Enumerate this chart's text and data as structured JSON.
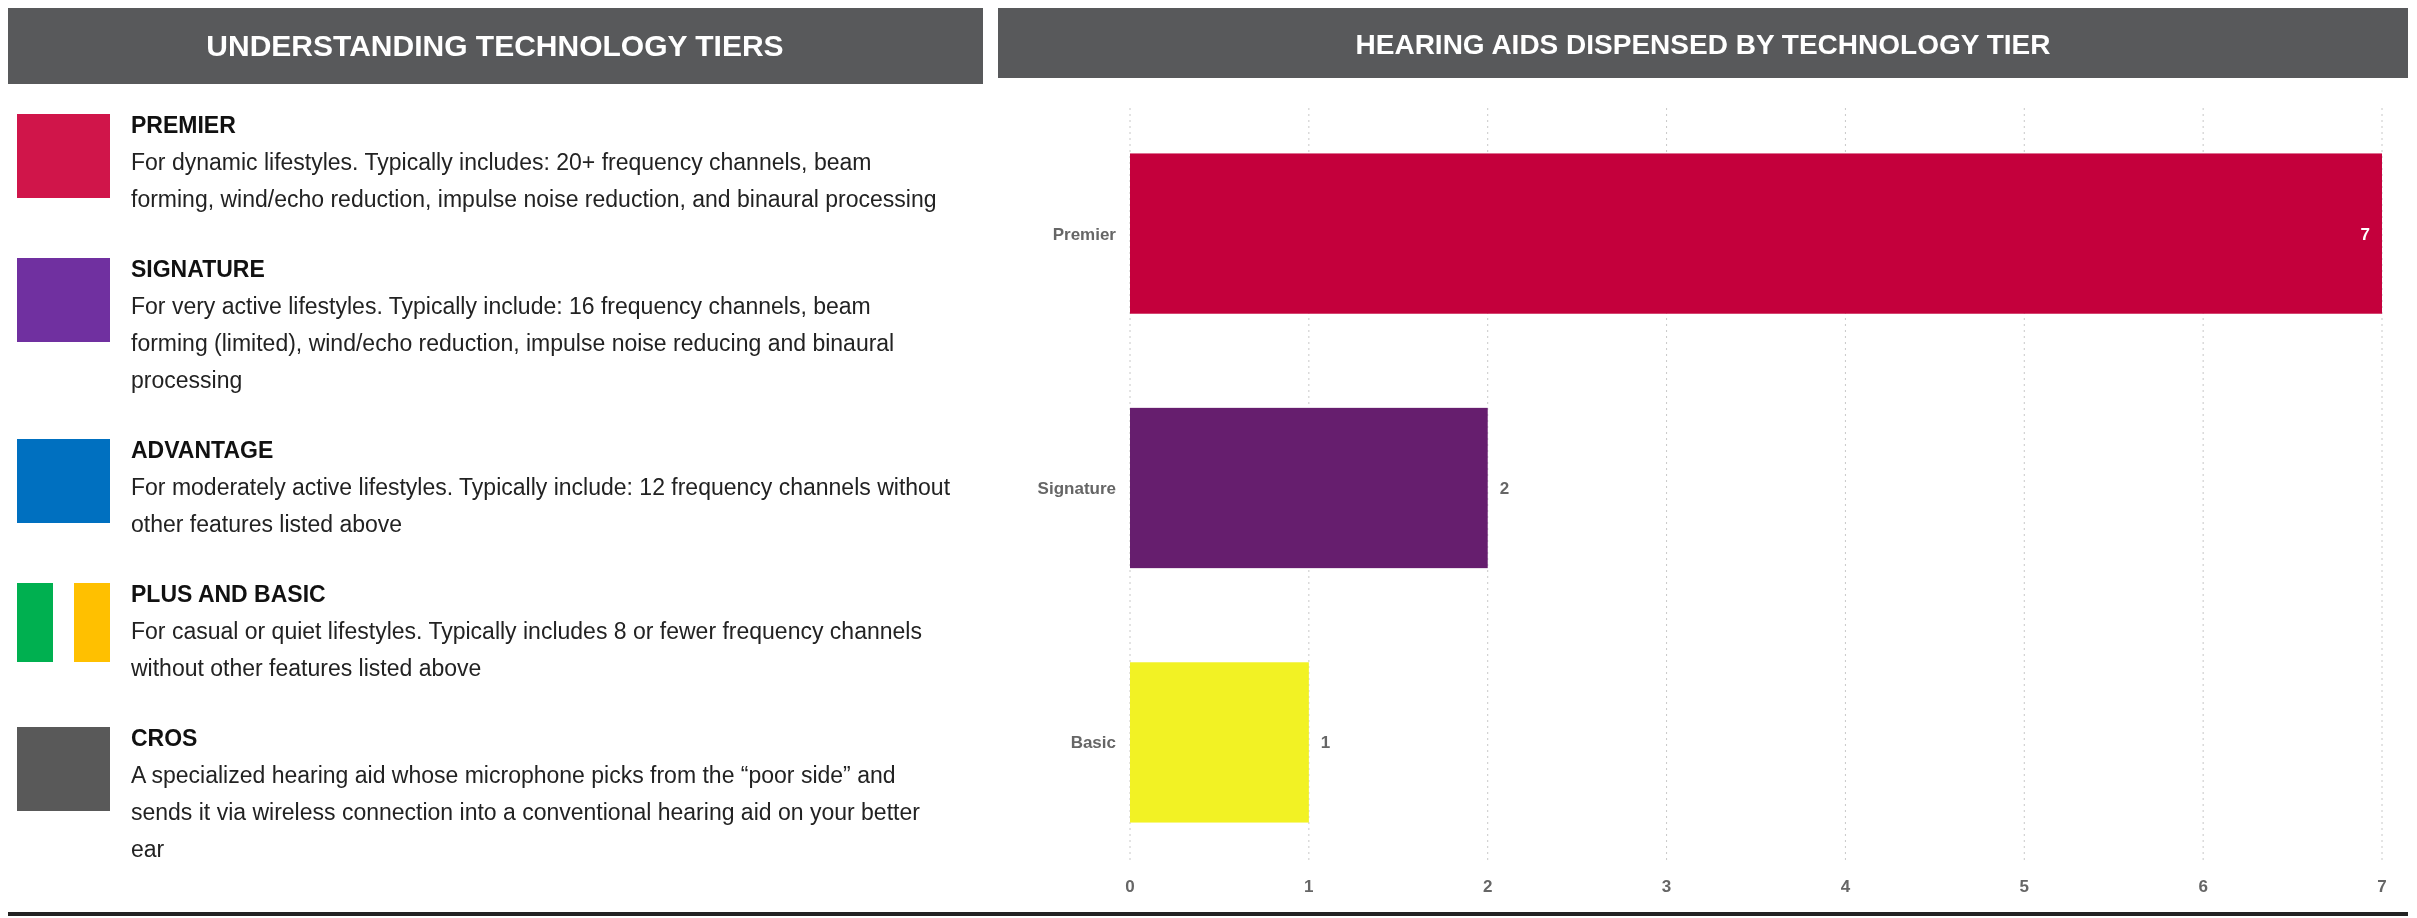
{
  "chart_data": [
    {
      "type": "other",
      "title": "UNDERSTANDING TECHNOLOGY TIERS",
      "annotations": [
        "PREMIER",
        "For dynamic lifestyles. Typically includes: 20+ frequency channels, beam forming, wind/echo reduction, impulse noise reduction, and binaural processing",
        "SIGNATURE",
        "For very active lifestyles. Typically include: 16 frequency channels, beam forming (limited), wind/echo reduction, impulse noise reducing and binaural processing",
        "ADVANTAGE",
        "For moderately active lifestyles. Typically include: 12 frequency channels without other features listed above",
        "PLUS AND BASIC",
        "For casual or quiet lifestyles. Typically includes 8 or fewer frequency channels without other features listed above",
        "CROS",
        "A specialized hearing aid whose microphone picks from the “poor side” and sends it via wireless connection into a conventional hearing aid on your better ear"
      ]
    },
    {
      "type": "bar",
      "orientation": "horizontal",
      "title": "HEARING AIDS DISPENSED BY TECHNOLOGY TIER",
      "categories": [
        "Premier",
        "Signature",
        "Basic"
      ],
      "values": [
        7,
        2,
        1
      ],
      "colors": [
        "#c4003c",
        "#661e6e",
        "#f2f224"
      ],
      "xlim": [
        0,
        7
      ],
      "xticks": [
        0,
        1,
        2,
        3,
        4,
        5,
        6,
        7
      ],
      "grid": "x",
      "data_labels": true
    }
  ]
}
